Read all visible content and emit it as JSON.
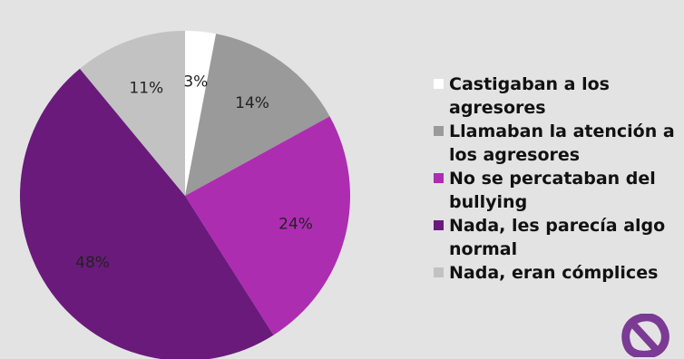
{
  "chart_data": {
    "type": "pie",
    "categories": [
      "Castigaban a los agresores",
      "Llamaban la atención a los agresores",
      "No se percataban del bullying",
      "Nada, les parecía algo normal",
      "Nada, eran cómplices"
    ],
    "values": [
      3,
      14,
      24,
      48,
      11
    ],
    "labels": [
      "3%",
      "14%",
      "24%",
      "48%",
      "11%"
    ],
    "colors": [
      "#ffffff",
      "#9a9a9a",
      "#ad2db0",
      "#6a1a7b",
      "#c2c2c2"
    ],
    "title": "",
    "legend_position": "right"
  },
  "background": "#e3e3e3",
  "logo": {
    "icon": "purple-ribbon-icon",
    "color": "#7b3a93"
  }
}
